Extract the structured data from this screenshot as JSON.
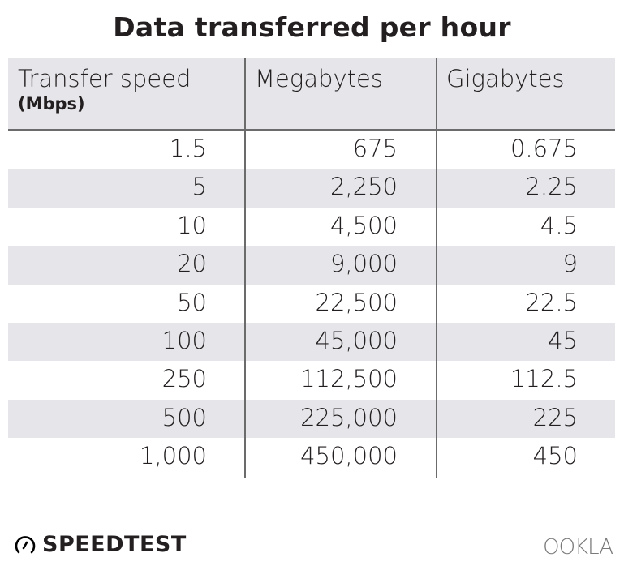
{
  "title": "Data transferred per hour",
  "chart_data": {
    "type": "table",
    "title": "Data transferred per hour",
    "columns": [
      {
        "label": "Transfer speed",
        "sublabel": "(Mbps)"
      },
      {
        "label": "Megabytes"
      },
      {
        "label": "Gigabytes"
      }
    ],
    "rows": [
      [
        "1.5",
        "675",
        "0.675"
      ],
      [
        "5",
        "2,250",
        "2.25"
      ],
      [
        "10",
        "4,500",
        "4.5"
      ],
      [
        "20",
        "9,000",
        "9"
      ],
      [
        "50",
        "22,500",
        "22.5"
      ],
      [
        "100",
        "45,000",
        "45"
      ],
      [
        "250",
        "112,500",
        "112.5"
      ],
      [
        "500",
        "225,000",
        "225"
      ],
      [
        "1,000",
        "450,000",
        "450"
      ]
    ],
    "colors": {
      "header_bg": "#e6e6ea",
      "alt_row_bg": "#e6e6ea",
      "divider": "#6b6b6b"
    }
  },
  "footer": {
    "brand": "SPEEDTEST",
    "brand_icon": "speedometer-icon",
    "logo": "OOKLA"
  }
}
